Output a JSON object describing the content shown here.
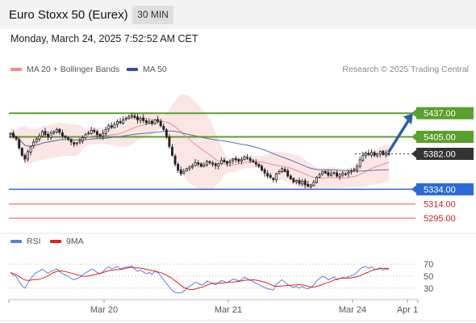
{
  "header": {
    "title": "Euro Stoxx 50 (Eurex)",
    "timeframe": "30 MIN"
  },
  "datetime": "Monday, March 24, 2025 7:52:52 AM CET",
  "legend": [
    {
      "label": "MA 20 + Bollinger Bands",
      "color": "#f08c8c"
    },
    {
      "label": "MA 50",
      "color": "#36509a"
    }
  ],
  "credit": "Research © 2025 Trading Central",
  "rsi_legend": [
    {
      "label": "RSI",
      "color": "#5a7fd6"
    },
    {
      "label": "9MA",
      "color": "#e02020"
    }
  ],
  "colors": {
    "resistance": "#5aa02c",
    "support": "#2b6bd6",
    "minor_support": "#e05050",
    "current": "#333333",
    "arrow": "#3060a8"
  },
  "chart_data": {
    "type": "candlestick",
    "price_range": [
      5282,
      5470
    ],
    "x_ticks": [
      "Mar 20",
      "Mar 21",
      "Mar 24",
      "Apr 1"
    ],
    "closes": [
      5410,
      5405,
      5402,
      5390,
      5380,
      5375,
      5385,
      5392,
      5398,
      5402,
      5406,
      5412,
      5408,
      5405,
      5410,
      5412,
      5415,
      5411,
      5406,
      5404,
      5402,
      5398,
      5395,
      5397,
      5400,
      5404,
      5408,
      5410,
      5414,
      5412,
      5408,
      5406,
      5410,
      5415,
      5420,
      5418,
      5422,
      5426,
      5424,
      5428,
      5430,
      5432,
      5434,
      5431,
      5428,
      5430,
      5427,
      5424,
      5426,
      5423,
      5428,
      5426,
      5420,
      5415,
      5405,
      5392,
      5380,
      5368,
      5360,
      5355,
      5358,
      5362,
      5364,
      5366,
      5370,
      5368,
      5365,
      5367,
      5372,
      5370,
      5368,
      5366,
      5369,
      5373,
      5371,
      5369,
      5372,
      5375,
      5374,
      5372,
      5374,
      5378,
      5376,
      5373,
      5371,
      5368,
      5365,
      5360,
      5356,
      5352,
      5350,
      5347,
      5355,
      5358,
      5362,
      5358,
      5352,
      5348,
      5344,
      5346,
      5342,
      5345,
      5340,
      5338,
      5340,
      5344,
      5350,
      5354,
      5358,
      5356,
      5353,
      5355,
      5357,
      5352,
      5354,
      5356,
      5355,
      5357,
      5359,
      5361,
      5365,
      5374,
      5380,
      5383,
      5381,
      5384,
      5380,
      5382,
      5385,
      5381,
      5383,
      5382
    ],
    "levels": [
      {
        "label": "5437.00",
        "value": 5437,
        "kind": "resistance"
      },
      {
        "label": "5405.00",
        "value": 5405,
        "kind": "resistance"
      },
      {
        "label": "5382.00",
        "value": 5382,
        "kind": "current"
      },
      {
        "label": "5334.00",
        "value": 5334,
        "kind": "support"
      },
      {
        "label": "5314.00",
        "value": 5314,
        "kind": "minor_support"
      },
      {
        "label": "5295.00",
        "value": 5295,
        "kind": "minor_support"
      }
    ],
    "target_arrow": {
      "from": 5385,
      "to": 5437
    },
    "rsi": {
      "range": [
        15,
        85
      ],
      "ticks": [
        70,
        50,
        30
      ],
      "values": [
        56,
        52,
        49,
        41,
        34,
        30,
        38,
        46,
        52,
        56,
        58,
        62,
        58,
        55,
        58,
        60,
        62,
        58,
        54,
        52,
        50,
        46,
        44,
        46,
        48,
        52,
        56,
        58,
        62,
        60,
        56,
        54,
        58,
        62,
        66,
        62,
        64,
        66,
        62,
        64,
        65,
        66,
        67,
        62,
        58,
        60,
        57,
        54,
        56,
        53,
        58,
        56,
        50,
        44,
        38,
        32,
        26,
        23,
        22,
        22,
        25,
        30,
        33,
        36,
        40,
        38,
        35,
        37,
        42,
        40,
        38,
        36,
        39,
        43,
        41,
        39,
        42,
        45,
        44,
        42,
        44,
        48,
        46,
        43,
        41,
        38,
        36,
        33,
        31,
        29,
        28,
        27,
        36,
        40,
        44,
        40,
        36,
        33,
        31,
        33,
        30,
        33,
        30,
        29,
        31,
        36,
        42,
        46,
        50,
        48,
        44,
        46,
        49,
        44,
        46,
        48,
        47,
        49,
        51,
        53,
        56,
        62,
        65,
        66,
        63,
        66,
        61,
        62,
        64,
        60,
        62,
        61
      ]
    }
  }
}
